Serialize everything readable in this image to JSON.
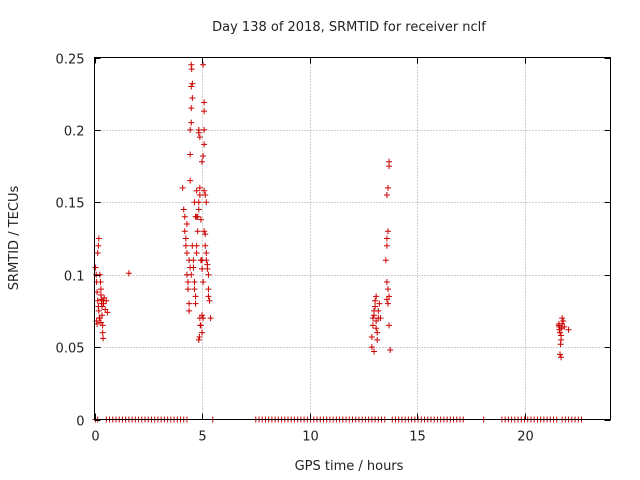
{
  "chart_data": {
    "type": "scatter",
    "title": "Day 138 of 2018, SRMTID for receiver nclf",
    "xlabel": "GPS time / hours",
    "ylabel": "SRMTID / TECUs",
    "xlim": [
      0,
      24
    ],
    "ylim": [
      0,
      0.25
    ],
    "x_ticks": [
      0,
      5,
      10,
      15,
      20
    ],
    "x_tick_labels": [
      "0",
      "5",
      "10",
      "15",
      "20"
    ],
    "y_ticks": [
      0,
      0.05,
      0.1,
      0.15,
      0.2,
      0.25
    ],
    "y_tick_labels": [
      "0",
      "0.05",
      "0.1",
      "0.15",
      "0.2",
      "0.25"
    ],
    "grid": true,
    "marker": "+",
    "color": "#cc0000",
    "series": [
      {
        "points": [
          [
            0.05,
            0.105
          ],
          [
            0.08,
            0.1
          ],
          [
            0.1,
            0.095
          ],
          [
            0.12,
            0.088
          ],
          [
            0.15,
            0.082
          ],
          [
            0.18,
            0.078
          ],
          [
            0.2,
            0.075
          ],
          [
            0.22,
            0.07
          ],
          [
            0.1,
            0.068
          ],
          [
            0.12,
            0.066
          ],
          [
            0.15,
            0.115
          ],
          [
            0.18,
            0.12
          ],
          [
            0.2,
            0.125
          ],
          [
            0.25,
            0.1
          ],
          [
            0.28,
            0.095
          ],
          [
            0.3,
            0.09
          ],
          [
            0.3,
            0.086
          ],
          [
            0.32,
            0.083
          ],
          [
            0.33,
            0.08
          ],
          [
            0.35,
            0.078
          ],
          [
            0.35,
            0.072
          ],
          [
            0.38,
            0.065
          ],
          [
            0.38,
            0.06
          ],
          [
            0.4,
            0.056
          ],
          [
            0.4,
            0.082
          ],
          [
            0.42,
            0.08
          ],
          [
            0.45,
            0.084
          ],
          [
            0.5,
            0.076
          ],
          [
            0.55,
            0.082
          ],
          [
            0.6,
            0.074
          ],
          [
            0.25,
            0.07
          ],
          [
            0.3,
            0.067
          ],
          [
            1.6,
            0.101
          ],
          [
            4.1,
            0.16
          ],
          [
            4.15,
            0.145
          ],
          [
            4.2,
            0.14
          ],
          [
            4.2,
            0.13
          ],
          [
            4.25,
            0.125
          ],
          [
            4.25,
            0.12
          ],
          [
            4.3,
            0.115
          ],
          [
            4.3,
            0.135
          ],
          [
            4.3,
            0.1
          ],
          [
            4.35,
            0.095
          ],
          [
            4.35,
            0.09
          ],
          [
            4.4,
            0.08
          ],
          [
            4.4,
            0.075
          ],
          [
            4.45,
            0.165
          ],
          [
            4.45,
            0.183
          ],
          [
            4.45,
            0.2
          ],
          [
            4.5,
            0.205
          ],
          [
            4.5,
            0.215
          ],
          [
            4.5,
            0.23
          ],
          [
            4.5,
            0.245
          ],
          [
            4.52,
            0.242
          ],
          [
            4.55,
            0.232
          ],
          [
            4.55,
            0.222
          ],
          [
            4.4,
            0.11
          ],
          [
            4.45,
            0.105
          ],
          [
            4.5,
            0.1
          ],
          [
            4.55,
            0.12
          ],
          [
            4.6,
            0.11
          ],
          [
            4.6,
            0.105
          ],
          [
            4.65,
            0.095
          ],
          [
            4.65,
            0.09
          ],
          [
            4.7,
            0.085
          ],
          [
            4.7,
            0.08
          ],
          [
            4.75,
            0.115
          ],
          [
            4.75,
            0.12
          ],
          [
            4.8,
            0.13
          ],
          [
            4.8,
            0.14
          ],
          [
            4.85,
            0.145
          ],
          [
            4.85,
            0.15
          ],
          [
            4.9,
            0.155
          ],
          [
            4.9,
            0.16
          ],
          [
            4.85,
            0.2
          ],
          [
            4.85,
            0.198
          ],
          [
            4.9,
            0.195
          ],
          [
            4.9,
            0.07
          ],
          [
            4.92,
            0.065
          ],
          [
            4.85,
            0.055
          ],
          [
            4.88,
            0.057
          ],
          [
            4.95,
            0.065
          ],
          [
            5.0,
            0.06
          ],
          [
            5.0,
            0.072
          ],
          [
            5.05,
            0.07
          ],
          [
            5.0,
            0.178
          ],
          [
            5.05,
            0.182
          ],
          [
            5.1,
            0.19
          ],
          [
            5.1,
            0.2
          ],
          [
            5.1,
            0.213
          ],
          [
            5.1,
            0.219
          ],
          [
            5.05,
            0.245
          ],
          [
            5.1,
            0.158
          ],
          [
            5.15,
            0.155
          ],
          [
            5.2,
            0.15
          ],
          [
            5.1,
            0.13
          ],
          [
            5.15,
            0.128
          ],
          [
            5.15,
            0.12
          ],
          [
            5.2,
            0.115
          ],
          [
            5.2,
            0.11
          ],
          [
            5.25,
            0.107
          ],
          [
            5.25,
            0.104
          ],
          [
            5.3,
            0.1
          ],
          [
            5.3,
            0.09
          ],
          [
            5.3,
            0.085
          ],
          [
            5.35,
            0.082
          ],
          [
            5.4,
            0.07
          ],
          [
            5.0,
            0.11
          ],
          [
            5.0,
            0.104
          ],
          [
            5.05,
            0.095
          ],
          [
            4.95,
            0.11
          ],
          [
            4.95,
            0.138
          ],
          [
            4.7,
            0.14
          ],
          [
            4.65,
            0.15
          ],
          [
            4.75,
            0.14
          ],
          [
            4.75,
            0.158
          ],
          [
            12.9,
            0.05
          ],
          [
            12.9,
            0.057
          ],
          [
            12.95,
            0.065
          ],
          [
            12.95,
            0.07
          ],
          [
            13.0,
            0.072
          ],
          [
            13.0,
            0.075
          ],
          [
            13.05,
            0.078
          ],
          [
            13.05,
            0.082
          ],
          [
            13.1,
            0.085
          ],
          [
            13.1,
            0.068
          ],
          [
            13.1,
            0.063
          ],
          [
            13.15,
            0.06
          ],
          [
            13.15,
            0.055
          ],
          [
            13.2,
            0.07
          ],
          [
            13.2,
            0.075
          ],
          [
            13.25,
            0.08
          ],
          [
            13.3,
            0.07
          ],
          [
            13.0,
            0.047
          ],
          [
            13.55,
            0.11
          ],
          [
            13.6,
            0.12
          ],
          [
            13.6,
            0.125
          ],
          [
            13.65,
            0.13
          ],
          [
            13.6,
            0.155
          ],
          [
            13.65,
            0.16
          ],
          [
            13.7,
            0.175
          ],
          [
            13.7,
            0.178
          ],
          [
            13.6,
            0.095
          ],
          [
            13.65,
            0.09
          ],
          [
            13.7,
            0.085
          ],
          [
            13.6,
            0.083
          ],
          [
            13.65,
            0.08
          ],
          [
            13.7,
            0.065
          ],
          [
            13.75,
            0.048
          ],
          [
            21.6,
            0.065
          ],
          [
            21.62,
            0.062
          ],
          [
            21.65,
            0.06
          ],
          [
            21.7,
            0.058
          ],
          [
            21.72,
            0.063
          ],
          [
            21.75,
            0.066
          ],
          [
            21.8,
            0.068
          ],
          [
            21.75,
            0.07
          ],
          [
            21.7,
            0.055
          ],
          [
            21.68,
            0.052
          ],
          [
            21.65,
            0.045
          ],
          [
            21.7,
            0.043
          ],
          [
            21.85,
            0.064
          ],
          [
            22.05,
            0.062
          ],
          [
            21.6,
            0.066
          ],
          [
            21.62,
            0.064
          ]
        ]
      },
      {
        "points": [
          [
            0.05,
            0
          ],
          [
            0.15,
            0
          ],
          [
            0.55,
            0
          ],
          [
            0.7,
            0
          ],
          [
            0.85,
            0
          ],
          [
            1.0,
            0
          ],
          [
            1.15,
            0
          ],
          [
            1.3,
            0
          ],
          [
            1.45,
            0
          ],
          [
            1.6,
            0
          ],
          [
            1.75,
            0
          ],
          [
            1.9,
            0
          ],
          [
            2.05,
            0
          ],
          [
            2.2,
            0
          ],
          [
            2.35,
            0
          ],
          [
            2.5,
            0
          ],
          [
            2.65,
            0
          ],
          [
            2.8,
            0
          ],
          [
            2.95,
            0
          ],
          [
            3.1,
            0
          ],
          [
            3.25,
            0
          ],
          [
            3.4,
            0
          ],
          [
            3.55,
            0
          ],
          [
            3.7,
            0
          ],
          [
            3.85,
            0
          ],
          [
            4.0,
            0
          ],
          [
            4.15,
            0
          ],
          [
            4.3,
            0
          ],
          [
            5.5,
            0
          ],
          [
            7.5,
            0
          ],
          [
            7.65,
            0
          ],
          [
            7.8,
            0
          ],
          [
            7.95,
            0
          ],
          [
            8.1,
            0
          ],
          [
            8.25,
            0
          ],
          [
            8.4,
            0
          ],
          [
            8.55,
            0
          ],
          [
            8.7,
            0
          ],
          [
            8.85,
            0
          ],
          [
            9.0,
            0
          ],
          [
            9.15,
            0
          ],
          [
            9.3,
            0
          ],
          [
            9.45,
            0
          ],
          [
            9.6,
            0
          ],
          [
            9.75,
            0
          ],
          [
            9.9,
            0
          ],
          [
            10.05,
            0
          ],
          [
            10.2,
            0
          ],
          [
            10.35,
            0
          ],
          [
            10.5,
            0
          ],
          [
            10.65,
            0
          ],
          [
            10.8,
            0
          ],
          [
            10.95,
            0
          ],
          [
            11.1,
            0
          ],
          [
            11.25,
            0
          ],
          [
            11.4,
            0
          ],
          [
            11.55,
            0
          ],
          [
            11.7,
            0
          ],
          [
            11.85,
            0
          ],
          [
            12.0,
            0
          ],
          [
            12.15,
            0
          ],
          [
            12.3,
            0
          ],
          [
            12.45,
            0
          ],
          [
            12.6,
            0
          ],
          [
            12.75,
            0
          ],
          [
            12.9,
            0
          ],
          [
            13.05,
            0
          ],
          [
            13.2,
            0
          ],
          [
            13.35,
            0
          ],
          [
            13.5,
            0
          ],
          [
            13.85,
            0
          ],
          [
            14.0,
            0
          ],
          [
            14.15,
            0
          ],
          [
            14.3,
            0
          ],
          [
            14.45,
            0
          ],
          [
            14.6,
            0
          ],
          [
            14.75,
            0
          ],
          [
            14.9,
            0
          ],
          [
            15.05,
            0
          ],
          [
            15.2,
            0
          ],
          [
            15.35,
            0
          ],
          [
            15.5,
            0
          ],
          [
            15.65,
            0
          ],
          [
            15.8,
            0
          ],
          [
            15.95,
            0
          ],
          [
            16.1,
            0
          ],
          [
            16.25,
            0
          ],
          [
            16.4,
            0
          ],
          [
            16.55,
            0
          ],
          [
            16.7,
            0
          ],
          [
            16.85,
            0
          ],
          [
            17.0,
            0
          ],
          [
            17.15,
            0
          ],
          [
            18.1,
            0
          ],
          [
            18.95,
            0
          ],
          [
            19.1,
            0
          ],
          [
            19.25,
            0
          ],
          [
            19.4,
            0
          ],
          [
            19.55,
            0
          ],
          [
            19.7,
            0
          ],
          [
            19.85,
            0
          ],
          [
            20.0,
            0
          ],
          [
            20.15,
            0
          ],
          [
            20.3,
            0
          ],
          [
            20.45,
            0
          ],
          [
            20.6,
            0
          ],
          [
            20.75,
            0
          ],
          [
            20.9,
            0
          ],
          [
            21.05,
            0
          ],
          [
            21.2,
            0
          ],
          [
            21.35,
            0
          ],
          [
            21.5,
            0
          ],
          [
            21.75,
            0
          ],
          [
            21.9,
            0
          ],
          [
            22.05,
            0
          ],
          [
            22.2,
            0
          ],
          [
            22.35,
            0
          ],
          [
            22.5,
            0
          ],
          [
            22.65,
            0
          ]
        ]
      }
    ]
  }
}
